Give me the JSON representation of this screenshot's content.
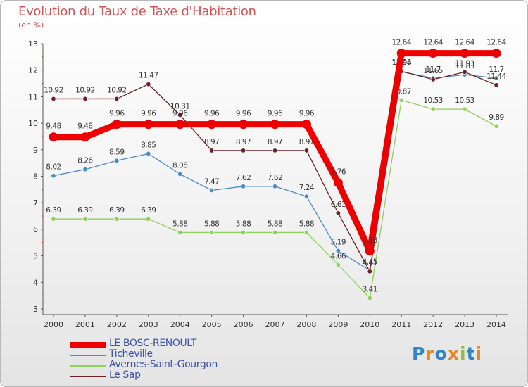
{
  "chart_data": {
    "type": "line",
    "title": "Evolution du Taux de Taxe d'Habitation",
    "subtitle": "(en %)",
    "x": [
      "2000",
      "2001",
      "2002",
      "2003",
      "2004",
      "2005",
      "2006",
      "2007",
      "2008",
      "2009",
      "2010",
      "2011",
      "2012",
      "2013",
      "2014"
    ],
    "ylim": [
      3,
      13
    ],
    "yticks": [
      3,
      4,
      5,
      6,
      7,
      8,
      9,
      10,
      11,
      12,
      13
    ],
    "grid": false,
    "series": [
      {
        "name": "Ticheville",
        "color": "#4a8bc8",
        "values": [
          8.02,
          8.26,
          8.59,
          8.85,
          8.08,
          7.47,
          7.62,
          7.62,
          7.24,
          5.19,
          4.45,
          11.94,
          11.7,
          11.83,
          11.7
        ]
      },
      {
        "name": "Avernes-Saint-Gourgon",
        "color": "#8ed25a",
        "values": [
          6.39,
          6.39,
          6.39,
          6.39,
          5.88,
          5.88,
          5.88,
          5.88,
          5.88,
          4.66,
          3.41,
          10.87,
          10.53,
          10.53,
          9.89
        ]
      },
      {
        "name": "Le Sap",
        "color": "#6a2226",
        "values": [
          10.92,
          10.92,
          10.92,
          11.47,
          10.31,
          8.97,
          8.97,
          8.97,
          8.97,
          6.61,
          4.41,
          11.96,
          11.65,
          11.93,
          11.44
        ]
      },
      {
        "name": "LE BOSC-RENOULT",
        "color": "#ee0000",
        "thick": true,
        "values": [
          9.48,
          9.48,
          9.96,
          9.96,
          9.96,
          9.96,
          9.96,
          9.96,
          9.96,
          7.76,
          5.18,
          12.64,
          12.64,
          12.64,
          12.64
        ]
      }
    ],
    "legend": [
      "LE BOSC-RENOULT",
      "Ticheville",
      "Avernes-Saint-Gourgon",
      "Le Sap"
    ],
    "legend_position": "bottom-left"
  },
  "logo": {
    "text": "Proxiti",
    "letters": [
      "P",
      "r",
      "o",
      "x",
      "i",
      "t",
      "i"
    ],
    "colors": [
      "#2f86c6",
      "#e58a22",
      "#2f86c6",
      "#e58a22",
      "#8cbf3a",
      "#2f86c6",
      "#e58a22"
    ]
  }
}
